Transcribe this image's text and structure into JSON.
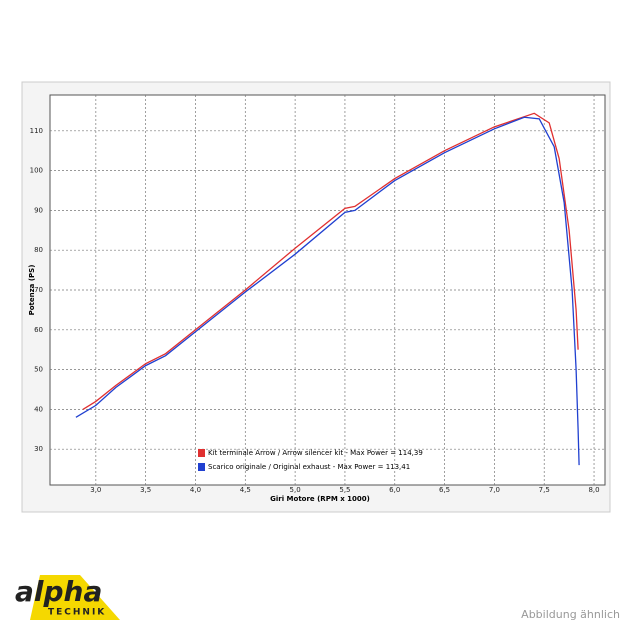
{
  "chart_data": {
    "type": "line",
    "x_label": "Giri Motore (RPM x 1000)",
    "y_label": "Potenza (PS)",
    "xlim": [
      2.54,
      8.11
    ],
    "ylim": [
      21,
      119
    ],
    "xticks": [
      {
        "value": 3,
        "label": "3,0"
      },
      {
        "value": 3.5,
        "label": "3,5"
      },
      {
        "value": 4,
        "label": "4,0"
      },
      {
        "value": 4.5,
        "label": "4,5"
      },
      {
        "value": 5,
        "label": "5,0"
      },
      {
        "value": 5.5,
        "label": "5,5"
      },
      {
        "value": 6,
        "label": "6,0"
      },
      {
        "value": 6.5,
        "label": "6,5"
      },
      {
        "value": 7,
        "label": "7,0"
      },
      {
        "value": 7.5,
        "label": "7,5"
      },
      {
        "value": 8,
        "label": "8,0"
      }
    ],
    "yticks": [
      30,
      40,
      50,
      60,
      70,
      80,
      90,
      100,
      110
    ],
    "grid": true,
    "series": [
      {
        "name": "Kit terminale Arrow / Arrow silencer kit - Max Power = 114,39",
        "color": "#e03030",
        "x": [
          2.87,
          3.0,
          3.2,
          3.5,
          3.7,
          4.0,
          4.5,
          5.0,
          5.5,
          5.6,
          6.0,
          6.5,
          7.0,
          7.4,
          7.55,
          7.65,
          7.75,
          7.82,
          7.84
        ],
        "values": [
          40,
          42,
          46,
          51.5,
          54,
          60,
          70,
          80.5,
          90.5,
          91,
          98,
          105,
          111,
          114.4,
          112,
          103,
          85,
          65,
          55
        ]
      },
      {
        "name": "Scarico originale / Original exhaust -  Max Power = 113,41",
        "color": "#2040d0",
        "x": [
          2.8,
          3.0,
          3.2,
          3.5,
          3.7,
          4.0,
          4.5,
          5.0,
          5.5,
          5.6,
          6.0,
          6.5,
          7.0,
          7.3,
          7.45,
          7.6,
          7.7,
          7.78,
          7.82,
          7.84,
          7.85
        ],
        "values": [
          38,
          41,
          45.5,
          51,
          53.5,
          59.5,
          69.5,
          79,
          89.5,
          90,
          97.5,
          104.5,
          110.5,
          113.4,
          113,
          106,
          92,
          70,
          50,
          35,
          26
        ]
      }
    ]
  },
  "logo": {
    "brand": "alpha",
    "subtitle": "TECHNIK"
  },
  "caption": "Abbildung ähnlich"
}
